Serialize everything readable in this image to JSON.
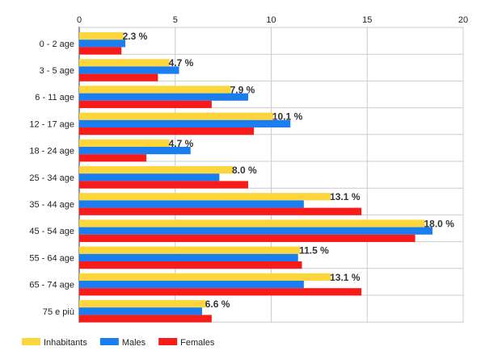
{
  "chart_data": {
    "type": "bar",
    "orientation": "horizontal",
    "categories": [
      "0 - 2 age",
      "3 - 5 age",
      "6 - 11 age",
      "12 - 17 age",
      "18 - 24 age",
      "25 - 34 age",
      "35 - 44 age",
      "45 - 54 age",
      "55 - 64 age",
      "65 - 74 age",
      "75 e più"
    ],
    "series": [
      {
        "name": "Inhabitants",
        "color": "#fcd63a",
        "values": [
          2.3,
          4.7,
          7.9,
          10.1,
          4.7,
          8.0,
          13.1,
          18.0,
          11.5,
          13.1,
          6.6
        ]
      },
      {
        "name": "Males",
        "color": "#1b7ef0",
        "values": [
          2.4,
          5.2,
          8.8,
          11.0,
          5.8,
          7.3,
          11.7,
          18.4,
          11.4,
          11.7,
          6.4
        ]
      },
      {
        "name": "Females",
        "color": "#f91a1a",
        "values": [
          2.2,
          4.1,
          6.9,
          9.1,
          3.5,
          8.8,
          14.7,
          17.5,
          11.6,
          14.7,
          6.9
        ]
      }
    ],
    "data_labels": [
      "2.3 %",
      "4.7 %",
      "7.9 %",
      "10.1 %",
      "4.7 %",
      "8.0 %",
      "13.1 %",
      "18.0 %",
      "11.5 %",
      "13.1 %",
      "6.6 %"
    ],
    "x_ticks": [
      "0",
      "5",
      "10",
      "15",
      "20"
    ],
    "xlim": [
      0,
      20
    ],
    "x_axis_position": "top",
    "grid": true,
    "legend_position": "bottom-left",
    "title": "",
    "xlabel": "",
    "ylabel": ""
  }
}
